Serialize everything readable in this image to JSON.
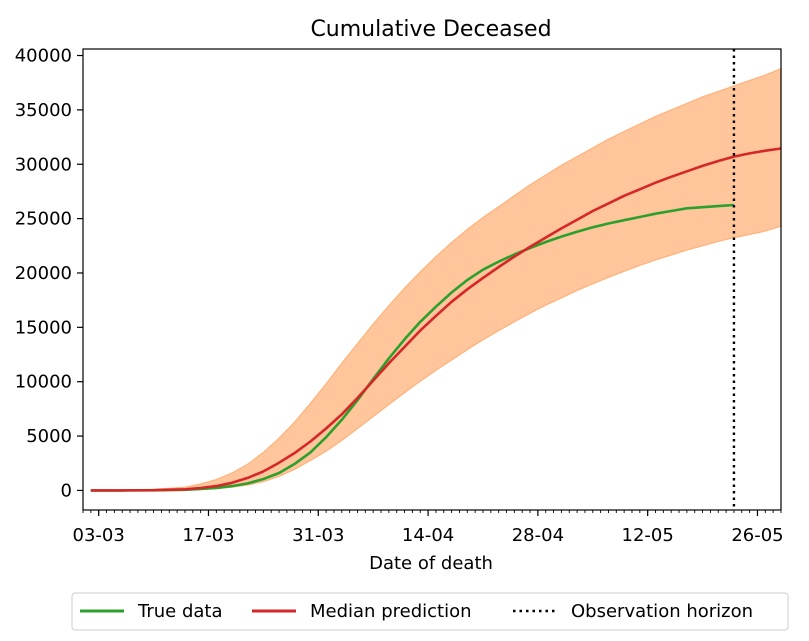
{
  "chart_data": {
    "type": "line",
    "title": "Cumulative Deceased",
    "xlabel": "Date of death",
    "ylabel": "",
    "x_start": "02-03",
    "x_range_days": [
      -1,
      88
    ],
    "ylim": [
      -1800,
      40600
    ],
    "yticks": [
      0,
      5000,
      10000,
      15000,
      20000,
      25000,
      30000,
      35000,
      40000
    ],
    "xticks": [
      {
        "day": 1,
        "label": "03-03"
      },
      {
        "day": 15,
        "label": "17-03"
      },
      {
        "day": 29,
        "label": "31-03"
      },
      {
        "day": 43,
        "label": "14-04"
      },
      {
        "day": 57,
        "label": "28-04"
      },
      {
        "day": 71,
        "label": "12-05"
      },
      {
        "day": 85,
        "label": "26-05"
      }
    ],
    "observation_horizon_day": 82,
    "series": [
      {
        "name": "True data",
        "color": "#2ca02c",
        "points": [
          [
            0,
            0
          ],
          [
            4,
            0
          ],
          [
            8,
            10
          ],
          [
            12,
            60
          ],
          [
            14,
            130
          ],
          [
            16,
            230
          ],
          [
            18,
            400
          ],
          [
            20,
            650
          ],
          [
            22,
            1050
          ],
          [
            24,
            1600
          ],
          [
            26,
            2450
          ],
          [
            28,
            3500
          ],
          [
            30,
            4900
          ],
          [
            32,
            6500
          ],
          [
            34,
            8300
          ],
          [
            36,
            10250
          ],
          [
            38,
            12150
          ],
          [
            40,
            13900
          ],
          [
            42,
            15500
          ],
          [
            44,
            16900
          ],
          [
            46,
            18200
          ],
          [
            48,
            19350
          ],
          [
            50,
            20300
          ],
          [
            52,
            21050
          ],
          [
            54,
            21700
          ],
          [
            56,
            22300
          ],
          [
            58,
            22850
          ],
          [
            60,
            23350
          ],
          [
            62,
            23800
          ],
          [
            64,
            24200
          ],
          [
            66,
            24550
          ],
          [
            68,
            24850
          ],
          [
            70,
            25150
          ],
          [
            72,
            25450
          ],
          [
            74,
            25700
          ],
          [
            76,
            25950
          ],
          [
            78,
            26050
          ],
          [
            80,
            26150
          ],
          [
            82,
            26250
          ]
        ]
      },
      {
        "name": "Median prediction",
        "color": "#d62728",
        "points": [
          [
            0,
            0
          ],
          [
            4,
            0
          ],
          [
            8,
            20
          ],
          [
            12,
            100
          ],
          [
            14,
            220
          ],
          [
            16,
            400
          ],
          [
            18,
            700
          ],
          [
            20,
            1150
          ],
          [
            22,
            1750
          ],
          [
            24,
            2550
          ],
          [
            26,
            3450
          ],
          [
            28,
            4500
          ],
          [
            30,
            5700
          ],
          [
            32,
            7000
          ],
          [
            34,
            8500
          ],
          [
            36,
            10100
          ],
          [
            38,
            11700
          ],
          [
            40,
            13200
          ],
          [
            42,
            14700
          ],
          [
            44,
            16050
          ],
          [
            46,
            17350
          ],
          [
            48,
            18500
          ],
          [
            50,
            19550
          ],
          [
            52,
            20550
          ],
          [
            54,
            21500
          ],
          [
            56,
            22400
          ],
          [
            58,
            23250
          ],
          [
            60,
            24100
          ],
          [
            62,
            24900
          ],
          [
            64,
            25700
          ],
          [
            66,
            26400
          ],
          [
            68,
            27100
          ],
          [
            70,
            27700
          ],
          [
            72,
            28300
          ],
          [
            74,
            28850
          ],
          [
            76,
            29350
          ],
          [
            78,
            29850
          ],
          [
            80,
            30300
          ],
          [
            82,
            30700
          ],
          [
            84,
            31000
          ],
          [
            86,
            31250
          ],
          [
            88,
            31450
          ]
        ]
      }
    ],
    "band": {
      "color": "#ffb27a",
      "upper": [
        [
          0,
          0
        ],
        [
          4,
          30
        ],
        [
          8,
          100
        ],
        [
          12,
          300
        ],
        [
          14,
          600
        ],
        [
          16,
          1000
        ],
        [
          18,
          1600
        ],
        [
          20,
          2400
        ],
        [
          22,
          3500
        ],
        [
          24,
          4800
        ],
        [
          26,
          6300
        ],
        [
          28,
          8000
        ],
        [
          30,
          9800
        ],
        [
          32,
          11700
        ],
        [
          34,
          13500
        ],
        [
          36,
          15300
        ],
        [
          38,
          17000
        ],
        [
          40,
          18600
        ],
        [
          42,
          20100
        ],
        [
          44,
          21500
        ],
        [
          46,
          22800
        ],
        [
          48,
          24000
        ],
        [
          50,
          25100
        ],
        [
          52,
          26100
        ],
        [
          54,
          27100
        ],
        [
          56,
          28100
        ],
        [
          58,
          29000
        ],
        [
          60,
          29900
        ],
        [
          62,
          30700
        ],
        [
          64,
          31500
        ],
        [
          66,
          32300
        ],
        [
          68,
          33000
        ],
        [
          70,
          33700
        ],
        [
          72,
          34400
        ],
        [
          74,
          35000
        ],
        [
          76,
          35600
        ],
        [
          78,
          36200
        ],
        [
          80,
          36700
        ],
        [
          82,
          37200
        ],
        [
          84,
          37700
        ],
        [
          86,
          38200
        ],
        [
          88,
          38800
        ]
      ],
      "lower": [
        [
          0,
          0
        ],
        [
          4,
          0
        ],
        [
          8,
          0
        ],
        [
          12,
          30
        ],
        [
          14,
          90
        ],
        [
          16,
          170
        ],
        [
          18,
          300
        ],
        [
          20,
          500
        ],
        [
          22,
          800
        ],
        [
          24,
          1300
        ],
        [
          26,
          1950
        ],
        [
          28,
          2750
        ],
        [
          30,
          3600
        ],
        [
          32,
          4600
        ],
        [
          34,
          5700
        ],
        [
          36,
          6800
        ],
        [
          38,
          7900
        ],
        [
          40,
          9000
        ],
        [
          42,
          10050
        ],
        [
          44,
          11050
        ],
        [
          46,
          12000
        ],
        [
          48,
          12950
        ],
        [
          50,
          13850
        ],
        [
          52,
          14700
        ],
        [
          54,
          15500
        ],
        [
          56,
          16300
        ],
        [
          58,
          17050
        ],
        [
          60,
          17700
        ],
        [
          62,
          18400
        ],
        [
          64,
          19000
        ],
        [
          66,
          19600
        ],
        [
          68,
          20150
        ],
        [
          70,
          20700
        ],
        [
          72,
          21200
        ],
        [
          74,
          21650
        ],
        [
          76,
          22100
        ],
        [
          78,
          22500
        ],
        [
          80,
          22900
        ],
        [
          82,
          23250
        ],
        [
          84,
          23550
        ],
        [
          86,
          23850
        ],
        [
          88,
          24300
        ]
      ]
    },
    "legend": {
      "placement": "bottom",
      "entries": [
        {
          "label": "True data",
          "color": "#2ca02c",
          "style": "solid"
        },
        {
          "label": "Median prediction",
          "color": "#d62728",
          "style": "solid"
        },
        {
          "label": "Observation horizon",
          "color": "#000000",
          "style": "dotted"
        }
      ]
    }
  }
}
